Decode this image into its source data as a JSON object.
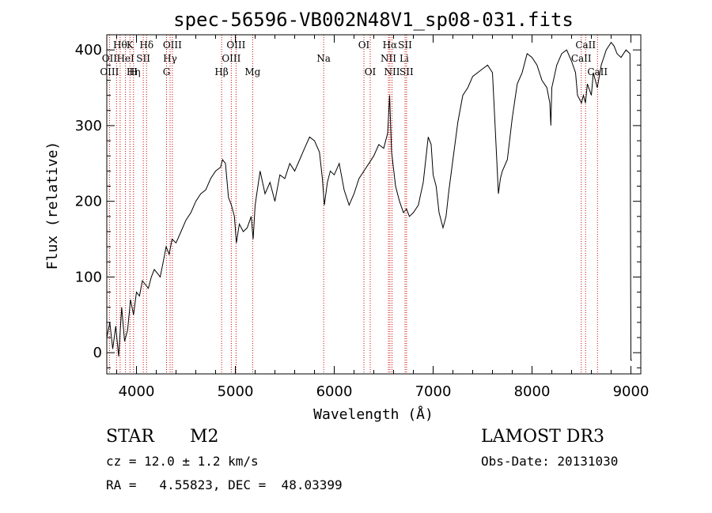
{
  "chart_data": {
    "type": "line",
    "title": "spec-56596-VB002N48V1_sp08-031.fits",
    "xlabel": "Wavelength (Å)",
    "ylabel": "Flux (relative)",
    "xlim": [
      3700,
      9100
    ],
    "ylim": [
      -28,
      420
    ],
    "x_ticks": [
      4000,
      5000,
      6000,
      7000,
      8000,
      9000
    ],
    "y_ticks": [
      0,
      100,
      200,
      300,
      400
    ],
    "grid": false,
    "series": [
      {
        "x": [
          3700,
          3730,
          3760,
          3790,
          3820,
          3850,
          3880,
          3910,
          3940,
          3970,
          4000,
          4030,
          4060,
          4090,
          4120,
          4150,
          4180,
          4210,
          4240,
          4270,
          4300,
          4330,
          4360,
          4400,
          4450,
          4500,
          4550,
          4600,
          4650,
          4700,
          4750,
          4800,
          4850,
          4870,
          4900,
          4930,
          4960,
          4990,
          5010,
          5040,
          5080,
          5120,
          5160,
          5180,
          5200,
          5250,
          5300,
          5350,
          5400,
          5450,
          5500,
          5550,
          5600,
          5650,
          5700,
          5750,
          5800,
          5850,
          5880,
          5900,
          5930,
          5960,
          6000,
          6050,
          6100,
          6150,
          6200,
          6250,
          6300,
          6350,
          6400,
          6450,
          6500,
          6540,
          6560,
          6570,
          6580,
          6620,
          6660,
          6700,
          6730,
          6760,
          6800,
          6850,
          6900,
          6950,
          6980,
          7000,
          7030,
          7060,
          7100,
          7130,
          7160,
          7200,
          7250,
          7300,
          7350,
          7400,
          7450,
          7500,
          7550,
          7600,
          7630,
          7660,
          7680,
          7700,
          7750,
          7800,
          7850,
          7900,
          7950,
          8000,
          8050,
          8100,
          8150,
          8180,
          8190,
          8200,
          8250,
          8300,
          8350,
          8400,
          8440,
          8460,
          8500,
          8520,
          8540,
          8560,
          8600,
          8620,
          8660,
          8700,
          8750,
          8800,
          8830,
          8860,
          8900,
          8950,
          8990,
          9000,
          9010
        ],
        "y": [
          20,
          40,
          5,
          35,
          -5,
          60,
          15,
          30,
          70,
          50,
          80,
          75,
          95,
          90,
          85,
          100,
          110,
          105,
          100,
          120,
          140,
          130,
          150,
          145,
          160,
          175,
          185,
          200,
          210,
          215,
          230,
          240,
          245,
          255,
          250,
          205,
          195,
          180,
          145,
          170,
          160,
          165,
          180,
          150,
          195,
          240,
          210,
          225,
          200,
          235,
          230,
          250,
          240,
          255,
          270,
          285,
          280,
          265,
          230,
          195,
          225,
          240,
          235,
          250,
          215,
          195,
          210,
          230,
          240,
          250,
          260,
          275,
          270,
          290,
          340,
          300,
          265,
          220,
          200,
          185,
          190,
          180,
          185,
          195,
          225,
          285,
          275,
          235,
          220,
          185,
          165,
          180,
          215,
          255,
          305,
          340,
          350,
          365,
          370,
          375,
          380,
          370,
          290,
          210,
          230,
          240,
          255,
          310,
          355,
          370,
          395,
          390,
          380,
          360,
          350,
          330,
          300,
          350,
          380,
          395,
          400,
          385,
          370,
          340,
          330,
          340,
          330,
          355,
          340,
          370,
          350,
          380,
          400,
          410,
          405,
          395,
          390,
          400,
          395,
          -10,
          -10
        ]
      }
    ],
    "line_labels": [
      {
        "wl": 3835,
        "name": "Hθ",
        "row": 0
      },
      {
        "wl": 3727,
        "name": "OII",
        "row": 1
      },
      {
        "wl": 3727,
        "name": "OIII",
        "row": 2
      },
      {
        "wl": 3889,
        "name": "HeI",
        "row": 1
      },
      {
        "wl": 3970,
        "name": "Hη",
        "row": 2
      },
      {
        "wl": 3934,
        "name": "K",
        "row": 0
      },
      {
        "wl": 4069,
        "name": "SII",
        "row": 1
      },
      {
        "wl": 3970,
        "name": "H",
        "row": 2
      },
      {
        "wl": 4102,
        "name": "Hδ",
        "row": 0
      },
      {
        "wl": 4363,
        "name": "OIII",
        "row": 0
      },
      {
        "wl": 4340,
        "name": "Hγ",
        "row": 1
      },
      {
        "wl": 4304,
        "name": "G",
        "row": 2
      },
      {
        "wl": 4861,
        "name": "Hβ",
        "row": 2
      },
      {
        "wl": 5007,
        "name": "OIII",
        "row": 0
      },
      {
        "wl": 4959,
        "name": "OIII",
        "row": 1
      },
      {
        "wl": 5175,
        "name": "Mg",
        "row": 2
      },
      {
        "wl": 5893,
        "name": "Na",
        "row": 1
      },
      {
        "wl": 6300,
        "name": "OI",
        "row": 0
      },
      {
        "wl": 6364,
        "name": "OI",
        "row": 2
      },
      {
        "wl": 6563,
        "name": "Hα",
        "row": 0
      },
      {
        "wl": 6716,
        "name": "SII",
        "row": 0
      },
      {
        "wl": 6548,
        "name": "NII",
        "row": 1
      },
      {
        "wl": 6707,
        "name": "Li",
        "row": 1
      },
      {
        "wl": 6584,
        "name": "NII",
        "row": 2
      },
      {
        "wl": 6731,
        "name": "SII",
        "row": 2
      },
      {
        "wl": 8542,
        "name": "CaII",
        "row": 0
      },
      {
        "wl": 8498,
        "name": "CaII",
        "row": 1
      },
      {
        "wl": 8662,
        "name": "CaII",
        "row": 2
      }
    ],
    "line_markers": [
      3727,
      3798,
      3835,
      3889,
      3934,
      3970,
      4069,
      4102,
      4304,
      4340,
      4363,
      4861,
      4959,
      5007,
      5175,
      5893,
      6300,
      6364,
      6548,
      6563,
      6584,
      6716,
      6731,
      8498,
      8542,
      8662
    ],
    "marker_color": "#cc0000",
    "line_color": "#000000"
  },
  "info": {
    "object_class": "STAR",
    "subclass": "M2",
    "survey": "LAMOST DR3",
    "redshift": "cz = 12.0 ± 1.2 km/s",
    "obs_date": "Obs-Date: 20131030",
    "coords": "RA =   4.55823, DEC =  48.03399"
  }
}
